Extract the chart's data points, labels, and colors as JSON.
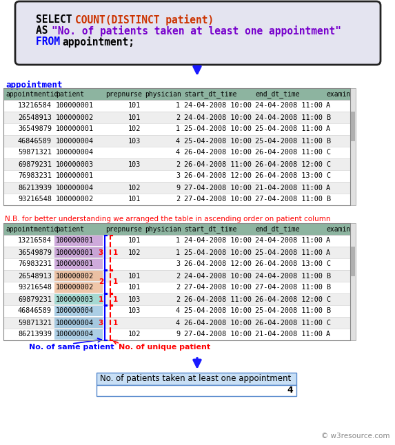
{
  "sql_line1_black": "SELECT ",
  "sql_line1_orange": "COUNT(DISTINCT patient)",
  "sql_line2_black": "AS ",
  "sql_line2_purple": "\"No. of patients taken at least one appointment\"",
  "sql_line3_blue": "FROM ",
  "sql_line3_black": "appointment;",
  "table_label": "appointment",
  "table_header": [
    "appointmentid",
    "patient",
    "prepnurse",
    "physician",
    "start_dt_time",
    "end_dt_time",
    "examin"
  ],
  "table1_data": [
    [
      "13216584",
      "100000001",
      "101",
      "1",
      "24-04-2008 10:00",
      "24-04-2008 11:00",
      "A"
    ],
    [
      "26548913",
      "100000002",
      "101",
      "2",
      "24-04-2008 10:00",
      "24-04-2008 11:00",
      "B"
    ],
    [
      "36549879",
      "100000001",
      "102",
      "1",
      "25-04-2008 10:00",
      "25-04-2008 11:00",
      "A"
    ],
    [
      "46846589",
      "100000004",
      "103",
      "4",
      "25-04-2008 10:00",
      "25-04-2008 11:00",
      "B"
    ],
    [
      "59871321",
      "100000004",
      "",
      "4",
      "26-04-2008 10:00",
      "26-04-2008 11:00",
      "C"
    ],
    [
      "69879231",
      "100000003",
      "103",
      "2",
      "26-04-2008 11:00",
      "26-04-2008 12:00",
      "C"
    ],
    [
      "76983231",
      "100000001",
      "",
      "3",
      "26-04-2008 12:00",
      "26-04-2008 13:00",
      "C"
    ],
    [
      "86213939",
      "100000004",
      "102",
      "9",
      "27-04-2008 10:00",
      "21-04-2008 11:00",
      "A"
    ],
    [
      "93216548",
      "100000002",
      "101",
      "2",
      "27-04-2008 10:00",
      "27-04-2008 11:00",
      "B"
    ]
  ],
  "table2_data": [
    [
      "13216584",
      "100000001",
      "101",
      "1",
      "24-04-2008 10:00",
      "24-04-2008 11:00",
      "A"
    ],
    [
      "36549879",
      "100000001",
      "102",
      "1",
      "25-04-2008 10:00",
      "25-04-2008 11:00",
      "A"
    ],
    [
      "76983231",
      "100000001",
      "",
      "3",
      "26-04-2008 12:00",
      "26-04-2008 13:00",
      "C"
    ],
    [
      "26548913",
      "100000002",
      "101",
      "2",
      "24-04-2008 10:00",
      "24-04-2008 11:00",
      "B"
    ],
    [
      "93216548",
      "100000002",
      "101",
      "2",
      "27-04-2008 10:00",
      "27-04-2008 11:00",
      "B"
    ],
    [
      "69879231",
      "100000003",
      "103",
      "2",
      "26-04-2008 11:00",
      "26-04-2008 12:00",
      "C"
    ],
    [
      "46846589",
      "100000004",
      "103",
      "4",
      "25-04-2008 10:00",
      "25-04-2008 11:00",
      "B"
    ],
    [
      "59871321",
      "100000004",
      "",
      "4",
      "26-04-2008 10:00",
      "26-04-2008 11:00",
      "C"
    ],
    [
      "86213939",
      "100000004",
      "102",
      "9",
      "27-04-2008 10:00",
      "21-04-2008 11:00",
      "A"
    ]
  ],
  "result_label": "No. of patients taken at least one appointment",
  "result_value": "4",
  "header_color": "#8db4a0",
  "row_color_alt": "#eeeeee",
  "row_color_white": "#ffffff",
  "patient_colors": {
    "100000001": "#b57dc8",
    "100000002": "#e8a87c",
    "100000003": "#7ecfc4",
    "100000004": "#7eb5d8"
  },
  "nb_text": "N.B. for better understanding we arranged the table in ascending order on patient column",
  "arrow_color": "#1a1aff",
  "result_bg": "#c8dff5",
  "scrollbar_color": "#c8c8c8"
}
